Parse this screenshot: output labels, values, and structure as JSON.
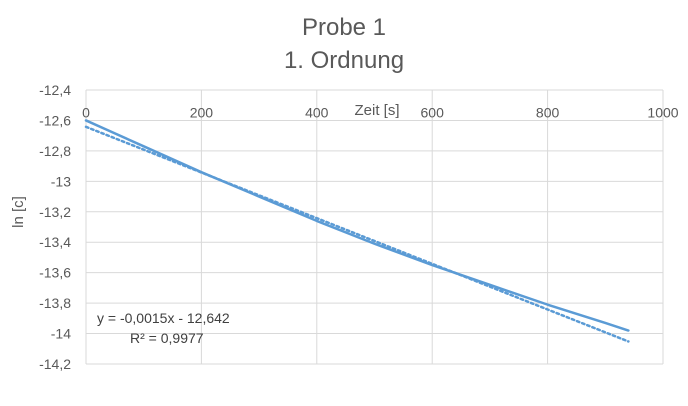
{
  "chart_data": {
    "type": "line",
    "title": "Probe 1",
    "subtitle": "1. Ordnung",
    "xlabel": "Zeit [s]",
    "ylabel": "ln [c]",
    "xlim": [
      0,
      1000
    ],
    "ylim": [
      -14.2,
      -12.4
    ],
    "x_ticks": [
      0,
      200,
      400,
      600,
      800,
      1000
    ],
    "x_tick_labels": [
      "0",
      "200",
      "400",
      "600",
      "800",
      "1000"
    ],
    "y_ticks": [
      -12.4,
      -12.6,
      -12.8,
      -13,
      -13.2,
      -13.4,
      -13.6,
      -13.8,
      -14,
      -14.2
    ],
    "y_tick_labels": [
      "-12,4",
      "-12,6",
      "-12,8",
      "-13",
      "-13,2",
      "-13,4",
      "-13,6",
      "-13,8",
      "-14",
      "-14,2"
    ],
    "grid": true,
    "series": [
      {
        "color": "#5b9bd5",
        "x": [
          0,
          100,
          200,
          300,
          400,
          500,
          600,
          700,
          800,
          900,
          940
        ],
        "y": [
          -12.6,
          -12.77,
          -12.94,
          -13.1,
          -13.26,
          -13.41,
          -13.55,
          -13.68,
          -13.81,
          -13.93,
          -13.98
        ]
      }
    ],
    "trendline": {
      "type": "linear",
      "style": "dotted",
      "color": "#5b9bd5",
      "slope": -0.0015,
      "intercept": -12.642,
      "x_range": [
        0,
        940
      ],
      "equation": "y = -0,0015x - 12,642",
      "r_squared": "R² = 0,9977"
    }
  }
}
